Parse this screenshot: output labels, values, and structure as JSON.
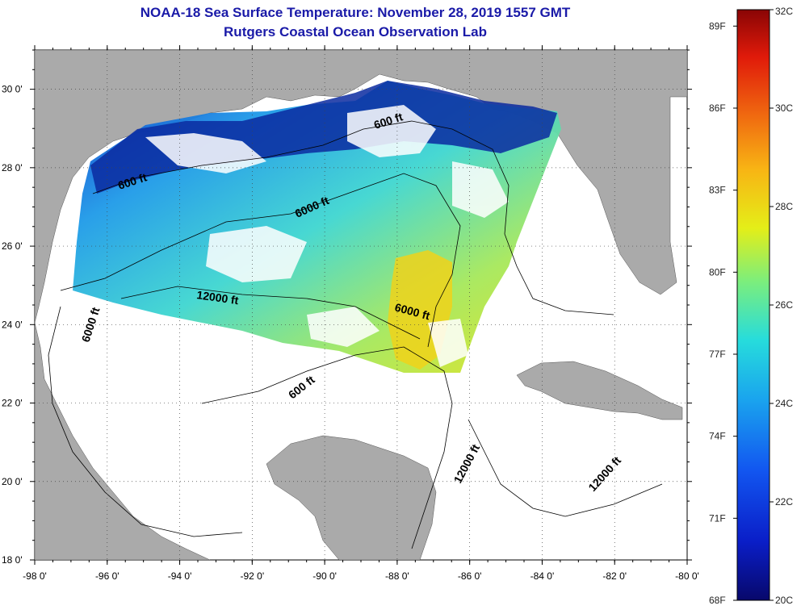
{
  "header": {
    "title": "NOAA-18 Sea Surface Temperature:  November 28, 2019 1557 GMT",
    "subtitle": "Rutgers Coastal Ocean Observation Lab"
  },
  "map": {
    "lon_range": [
      -98,
      -80
    ],
    "lat_range": [
      18,
      31
    ],
    "lon_ticks": [
      "-98 0'",
      "-96 0'",
      "-94 0'",
      "-92 0'",
      "-90 0'",
      "-88 0'",
      "-86 0'",
      "-84 0'",
      "-82 0'",
      "-80 0'"
    ],
    "lat_ticks": [
      "18 0'",
      "20 0'",
      "22 0'",
      "24 0'",
      "26 0'",
      "28 0'",
      "30 0'"
    ],
    "contour_labels": [
      "600 ft",
      "600 ft",
      "6000 ft",
      "12000 ft",
      "6000 ft",
      "6000 ft",
      "600 ft",
      "12000 ft",
      "12000 ft"
    ],
    "grid": true
  },
  "colorbar": {
    "min_c": 20,
    "max_c": 32,
    "celsius_labels": [
      "32C",
      "30C",
      "28C",
      "26C",
      "24C",
      "22C",
      "20C"
    ],
    "fahrenheit_labels": [
      "89F",
      "86F",
      "83F",
      "80F",
      "77F",
      "74F",
      "71F",
      "68F"
    ],
    "colors": [
      "#08086b",
      "#0a1ec8",
      "#1256f0",
      "#1aa4ee",
      "#26dcdc",
      "#7cee7c",
      "#e4ee18",
      "#f8b414",
      "#f06a10",
      "#e01a0a",
      "#8a0505"
    ]
  }
}
